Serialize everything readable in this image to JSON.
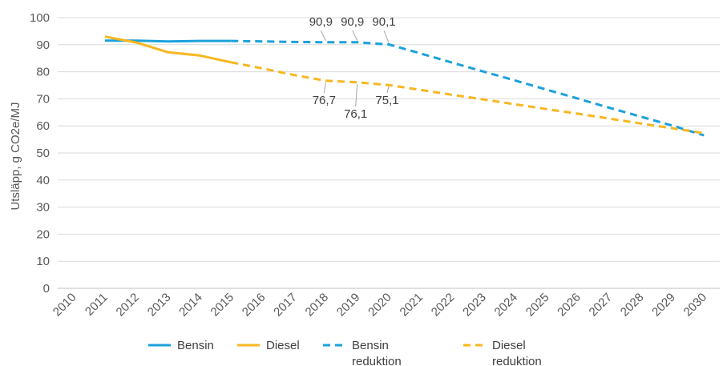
{
  "chart_data": {
    "type": "line",
    "ylabel": "Utsläpp, g CO2e/MJ",
    "xlabel": "",
    "ylim": [
      0,
      100
    ],
    "yticks": [
      0,
      10,
      20,
      30,
      40,
      50,
      60,
      70,
      80,
      90,
      100
    ],
    "x": [
      "2010",
      "2011",
      "2012",
      "2013",
      "2014",
      "2015",
      "2016",
      "2017",
      "2018",
      "2019",
      "2020",
      "2021",
      "2022",
      "2023",
      "2024",
      "2025",
      "2026",
      "2027",
      "2028",
      "2029",
      "2030"
    ],
    "grid": true,
    "legend_position": "bottom",
    "series": [
      {
        "name": "Bensin",
        "style": "solid",
        "color": "#1BA1DB",
        "x": [
          "2011",
          "2012",
          "2013",
          "2014",
          "2015"
        ],
        "values": [
          91.5,
          91.5,
          91.2,
          91.4,
          91.4
        ]
      },
      {
        "name": "Diesel",
        "style": "solid",
        "color": "#F6B71F",
        "x": [
          "2011",
          "2012",
          "2013",
          "2014",
          "2015"
        ],
        "values": [
          93.0,
          90.8,
          87.2,
          86.0,
          83.5
        ]
      },
      {
        "name": "Bensin reduktion",
        "style": "dashed",
        "color": "#1BA1DB",
        "x": [
          "2015",
          "2016",
          "2017",
          "2018",
          "2019",
          "2020",
          "2021",
          "2022",
          "2023",
          "2024",
          "2025",
          "2026",
          "2027",
          "2028",
          "2029",
          "2030"
        ],
        "values": [
          91.4,
          91.2,
          91.0,
          90.9,
          90.9,
          90.1,
          86.8,
          83.4,
          80.1,
          76.8,
          73.4,
          70.1,
          66.7,
          63.4,
          60.1,
          56.5
        ]
      },
      {
        "name": "Diesel reduktion",
        "style": "dashed",
        "color": "#F6B71F",
        "x": [
          "2015",
          "2016",
          "2017",
          "2018",
          "2019",
          "2020",
          "2021",
          "2022",
          "2023",
          "2024",
          "2025",
          "2026",
          "2027",
          "2028",
          "2029",
          "2030"
        ],
        "values": [
          83.5,
          81.2,
          78.8,
          76.7,
          76.1,
          75.1,
          73.3,
          71.5,
          69.8,
          68.0,
          66.2,
          64.5,
          62.7,
          60.9,
          59.1,
          57.3
        ]
      }
    ],
    "annotations": [
      {
        "label": "90,9",
        "series": "Bensin reduktion",
        "x": "2018",
        "y": 90.9,
        "side": "above"
      },
      {
        "label": "90,9",
        "series": "Bensin reduktion",
        "x": "2019",
        "y": 90.9,
        "side": "above"
      },
      {
        "label": "90,1",
        "series": "Bensin reduktion",
        "x": "2020",
        "y": 90.1,
        "side": "above"
      },
      {
        "label": "76,7",
        "series": "Diesel reduktion",
        "x": "2018",
        "y": 76.7,
        "side": "below"
      },
      {
        "label": "76,1",
        "series": "Diesel reduktion",
        "x": "2019",
        "y": 76.1,
        "side": "below"
      },
      {
        "label": "75,1",
        "series": "Diesel reduktion",
        "x": "2020",
        "y": 75.1,
        "side": "below"
      }
    ],
    "legend": [
      {
        "lines": [
          "Bensin"
        ],
        "color": "#1BA1DB",
        "style": "solid"
      },
      {
        "lines": [
          "Diesel"
        ],
        "color": "#F6B71F",
        "style": "solid"
      },
      {
        "lines": [
          "Bensin",
          "reduktion"
        ],
        "color": "#1BA1DB",
        "style": "dashed"
      },
      {
        "lines": [
          "Diesel",
          "reduktion"
        ],
        "color": "#F6B71F",
        "style": "dashed"
      }
    ]
  }
}
